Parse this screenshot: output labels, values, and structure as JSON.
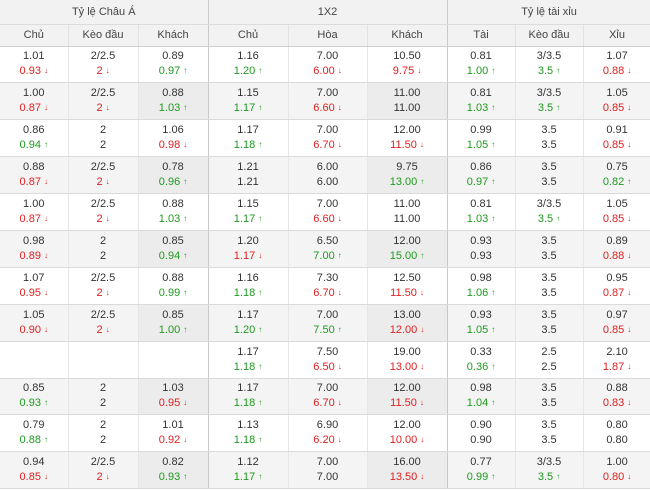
{
  "header": {
    "groups": [
      "Tỷ lệ Châu Á",
      "1X2",
      "Tỷ lệ tài xỉu"
    ],
    "columns": [
      "Chủ",
      "Kèo đầu",
      "Khách",
      "Chủ",
      "Hòa",
      "Khách",
      "Tài",
      "Kèo đầu",
      "Xỉu"
    ]
  },
  "colors": {
    "up": "#1e9a1e",
    "down": "#e02020",
    "alt_row": "#f4f4f4",
    "header_bg": "#f2f2f2"
  },
  "rows": [
    {
      "cells": [
        {
          "open": "1.01",
          "cur": "0.93",
          "dir": "down"
        },
        {
          "open": "2/2.5",
          "cur": "2",
          "dir": "down"
        },
        {
          "open": "0.89",
          "cur": "0.97",
          "dir": "up"
        },
        {
          "open": "1.16",
          "cur": "1.20",
          "dir": "up"
        },
        {
          "open": "7.00",
          "cur": "6.00",
          "dir": "down"
        },
        {
          "open": "10.50",
          "cur": "9.75",
          "dir": "down"
        },
        {
          "open": "0.81",
          "cur": "1.00",
          "dir": "up"
        },
        {
          "open": "3/3.5",
          "cur": "3.5",
          "dir": "up"
        },
        {
          "open": "1.07",
          "cur": "0.88",
          "dir": "down"
        }
      ]
    },
    {
      "cells": [
        {
          "open": "1.00",
          "cur": "0.87",
          "dir": "down"
        },
        {
          "open": "2/2.5",
          "cur": "2",
          "dir": "down"
        },
        {
          "open": "0.88",
          "cur": "1.03",
          "dir": "up"
        },
        {
          "open": "1.15",
          "cur": "1.17",
          "dir": "up"
        },
        {
          "open": "7.00",
          "cur": "6.60",
          "dir": "down"
        },
        {
          "open": "11.00",
          "cur": "11.00",
          "dir": ""
        },
        {
          "open": "0.81",
          "cur": "1.03",
          "dir": "up"
        },
        {
          "open": "3/3.5",
          "cur": "3.5",
          "dir": "up"
        },
        {
          "open": "1.05",
          "cur": "0.85",
          "dir": "down"
        }
      ]
    },
    {
      "cells": [
        {
          "open": "0.86",
          "cur": "0.94",
          "dir": "up"
        },
        {
          "open": "2",
          "cur": "2",
          "dir": ""
        },
        {
          "open": "1.06",
          "cur": "0.98",
          "dir": "down"
        },
        {
          "open": "1.17",
          "cur": "1.18",
          "dir": "up"
        },
        {
          "open": "7.00",
          "cur": "6.70",
          "dir": "down"
        },
        {
          "open": "12.00",
          "cur": "11.50",
          "dir": "down"
        },
        {
          "open": "0.99",
          "cur": "1.05",
          "dir": "up"
        },
        {
          "open": "3.5",
          "cur": "3.5",
          "dir": ""
        },
        {
          "open": "0.91",
          "cur": "0.85",
          "dir": "down"
        }
      ]
    },
    {
      "cells": [
        {
          "open": "0.88",
          "cur": "0.87",
          "dir": "down"
        },
        {
          "open": "2/2.5",
          "cur": "2",
          "dir": "down"
        },
        {
          "open": "0.78",
          "cur": "0.96",
          "dir": "up"
        },
        {
          "open": "1.21",
          "cur": "1.21",
          "dir": ""
        },
        {
          "open": "6.00",
          "cur": "6.00",
          "dir": ""
        },
        {
          "open": "9.75",
          "cur": "13.00",
          "dir": "up"
        },
        {
          "open": "0.86",
          "cur": "0.97",
          "dir": "up"
        },
        {
          "open": "3.5",
          "cur": "3.5",
          "dir": ""
        },
        {
          "open": "0.75",
          "cur": "0.82",
          "dir": "up"
        }
      ]
    },
    {
      "cells": [
        {
          "open": "1.00",
          "cur": "0.87",
          "dir": "down"
        },
        {
          "open": "2/2.5",
          "cur": "2",
          "dir": "down"
        },
        {
          "open": "0.88",
          "cur": "1.03",
          "dir": "up"
        },
        {
          "open": "1.15",
          "cur": "1.17",
          "dir": "up"
        },
        {
          "open": "7.00",
          "cur": "6.60",
          "dir": "down"
        },
        {
          "open": "11.00",
          "cur": "11.00",
          "dir": ""
        },
        {
          "open": "0.81",
          "cur": "1.03",
          "dir": "up"
        },
        {
          "open": "3/3.5",
          "cur": "3.5",
          "dir": "up"
        },
        {
          "open": "1.05",
          "cur": "0.85",
          "dir": "down"
        }
      ]
    },
    {
      "cells": [
        {
          "open": "0.98",
          "cur": "0.89",
          "dir": "down"
        },
        {
          "open": "2",
          "cur": "2",
          "dir": ""
        },
        {
          "open": "0.85",
          "cur": "0.94",
          "dir": "up"
        },
        {
          "open": "1.20",
          "cur": "1.17",
          "dir": "down"
        },
        {
          "open": "6.50",
          "cur": "7.00",
          "dir": "up"
        },
        {
          "open": "12.00",
          "cur": "15.00",
          "dir": "up"
        },
        {
          "open": "0.93",
          "cur": "0.93",
          "dir": ""
        },
        {
          "open": "3.5",
          "cur": "3.5",
          "dir": ""
        },
        {
          "open": "0.89",
          "cur": "0.88",
          "dir": "down"
        }
      ]
    },
    {
      "cells": [
        {
          "open": "1.07",
          "cur": "0.95",
          "dir": "down"
        },
        {
          "open": "2/2.5",
          "cur": "2",
          "dir": "down"
        },
        {
          "open": "0.88",
          "cur": "0.99",
          "dir": "up"
        },
        {
          "open": "1.16",
          "cur": "1.18",
          "dir": "up"
        },
        {
          "open": "7.30",
          "cur": "6.70",
          "dir": "down"
        },
        {
          "open": "12.50",
          "cur": "11.50",
          "dir": "down"
        },
        {
          "open": "0.98",
          "cur": "1.06",
          "dir": "up"
        },
        {
          "open": "3.5",
          "cur": "3.5",
          "dir": ""
        },
        {
          "open": "0.95",
          "cur": "0.87",
          "dir": "down"
        }
      ]
    },
    {
      "cells": [
        {
          "open": "1.05",
          "cur": "0.90",
          "dir": "down"
        },
        {
          "open": "2/2.5",
          "cur": "2",
          "dir": "down"
        },
        {
          "open": "0.85",
          "cur": "1.00",
          "dir": "up"
        },
        {
          "open": "1.17",
          "cur": "1.20",
          "dir": "up"
        },
        {
          "open": "7.00",
          "cur": "7.50",
          "dir": "up"
        },
        {
          "open": "13.00",
          "cur": "12.00",
          "dir": "down"
        },
        {
          "open": "0.93",
          "cur": "1.05",
          "dir": "up"
        },
        {
          "open": "3.5",
          "cur": "3.5",
          "dir": ""
        },
        {
          "open": "0.97",
          "cur": "0.85",
          "dir": "down"
        }
      ]
    },
    {
      "cells": [
        {
          "open": "",
          "cur": "",
          "dir": ""
        },
        {
          "open": "",
          "cur": "",
          "dir": ""
        },
        {
          "open": "",
          "cur": "",
          "dir": ""
        },
        {
          "open": "1.17",
          "cur": "1.18",
          "dir": "up"
        },
        {
          "open": "7.50",
          "cur": "6.50",
          "dir": "down"
        },
        {
          "open": "19.00",
          "cur": "13.00",
          "dir": "down"
        },
        {
          "open": "0.33",
          "cur": "0.36",
          "dir": "up"
        },
        {
          "open": "2.5",
          "cur": "2.5",
          "dir": ""
        },
        {
          "open": "2.10",
          "cur": "1.87",
          "dir": "down"
        }
      ]
    },
    {
      "cells": [
        {
          "open": "0.85",
          "cur": "0.93",
          "dir": "up"
        },
        {
          "open": "2",
          "cur": "2",
          "dir": ""
        },
        {
          "open": "1.03",
          "cur": "0.95",
          "dir": "down"
        },
        {
          "open": "1.17",
          "cur": "1.18",
          "dir": "up"
        },
        {
          "open": "7.00",
          "cur": "6.70",
          "dir": "down"
        },
        {
          "open": "12.00",
          "cur": "11.50",
          "dir": "down"
        },
        {
          "open": "0.98",
          "cur": "1.04",
          "dir": "up"
        },
        {
          "open": "3.5",
          "cur": "3.5",
          "dir": ""
        },
        {
          "open": "0.88",
          "cur": "0.83",
          "dir": "down"
        }
      ]
    },
    {
      "cells": [
        {
          "open": "0.79",
          "cur": "0.88",
          "dir": "up"
        },
        {
          "open": "2",
          "cur": "2",
          "dir": ""
        },
        {
          "open": "1.01",
          "cur": "0.92",
          "dir": "down"
        },
        {
          "open": "1.13",
          "cur": "1.18",
          "dir": "up"
        },
        {
          "open": "6.90",
          "cur": "6.20",
          "dir": "down"
        },
        {
          "open": "12.00",
          "cur": "10.00",
          "dir": "down"
        },
        {
          "open": "0.90",
          "cur": "0.90",
          "dir": ""
        },
        {
          "open": "3.5",
          "cur": "3.5",
          "dir": ""
        },
        {
          "open": "0.80",
          "cur": "0.80",
          "dir": ""
        }
      ]
    },
    {
      "cells": [
        {
          "open": "0.94",
          "cur": "0.85",
          "dir": "down"
        },
        {
          "open": "2/2.5",
          "cur": "2",
          "dir": "down"
        },
        {
          "open": "0.82",
          "cur": "0.93",
          "dir": "up"
        },
        {
          "open": "1.12",
          "cur": "1.17",
          "dir": "up"
        },
        {
          "open": "7.00",
          "cur": "7.00",
          "dir": ""
        },
        {
          "open": "16.00",
          "cur": "13.50",
          "dir": "down"
        },
        {
          "open": "0.77",
          "cur": "0.99",
          "dir": "up"
        },
        {
          "open": "3/3.5",
          "cur": "3.5",
          "dir": "up"
        },
        {
          "open": "1.00",
          "cur": "0.80",
          "dir": "down"
        }
      ]
    }
  ]
}
